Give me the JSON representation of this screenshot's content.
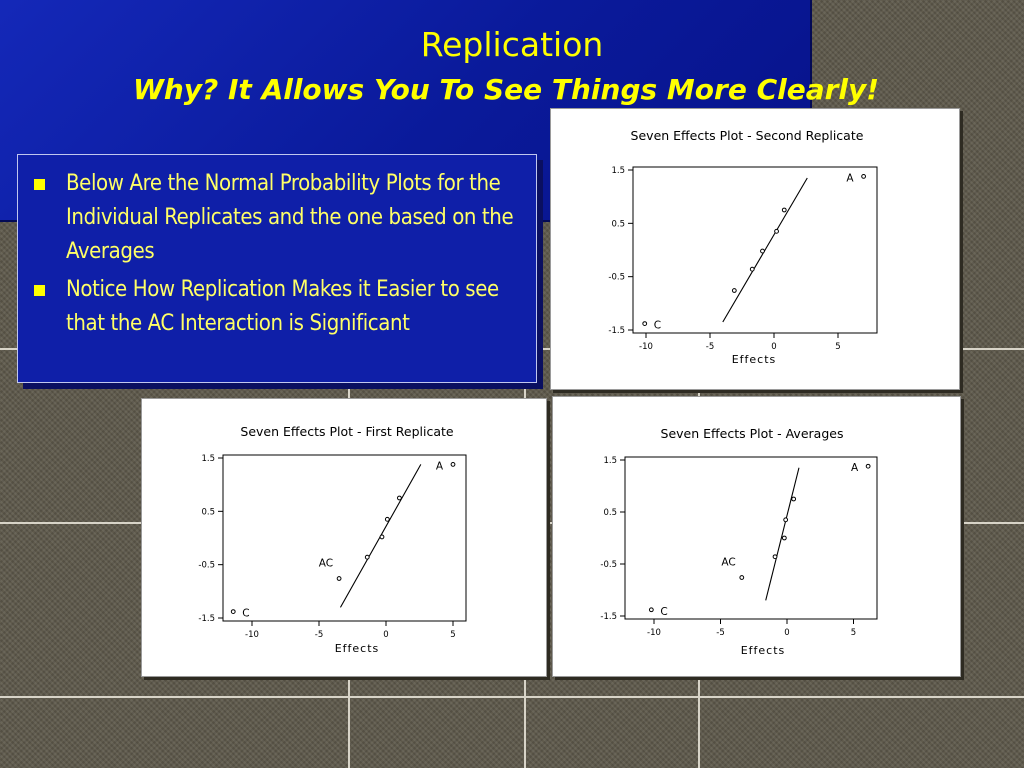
{
  "slide": {
    "title": "Replication",
    "subtitle": "Why?  It Allows You To See Things More Clearly!",
    "bullets": [
      "Below Are the Normal Probability Plots for the Individual Replicates and the one based on the Averages",
      "Notice How Replication Makes it Easier to see that the AC Interaction is Significant"
    ],
    "colors": {
      "title": "#ffff00",
      "panel": "#0f1fa8",
      "bullet_text": "#ffff66"
    }
  },
  "chart_data": [
    {
      "type": "scatter",
      "title": "Seven Effects Plot - Second Replicate",
      "xlabel": "Effects",
      "ylabel": "",
      "xlim": [
        -11,
        8
      ],
      "ylim": [
        -1.5,
        1.5
      ],
      "x_ticks": [
        -10,
        -5,
        0,
        5
      ],
      "y_ticks": [
        1.5,
        0.5,
        -0.5,
        -1.5
      ],
      "points": [
        {
          "x": -10.1,
          "y": -1.38,
          "label": "C"
        },
        {
          "x": -3.1,
          "y": -0.76,
          "label": ""
        },
        {
          "x": -1.7,
          "y": -0.36,
          "label": ""
        },
        {
          "x": -0.9,
          "y": -0.02,
          "label": ""
        },
        {
          "x": 0.2,
          "y": 0.35,
          "label": ""
        },
        {
          "x": 0.8,
          "y": 0.75,
          "label": ""
        },
        {
          "x": 7.0,
          "y": 1.38,
          "label": "A"
        }
      ],
      "fit_line": [
        [
          -4.0,
          -1.35
        ],
        [
          2.6,
          1.35
        ]
      ]
    },
    {
      "type": "scatter",
      "title": "Seven Effects Plot - First Replicate",
      "xlabel": "Effects",
      "ylabel": "",
      "xlim": [
        -12,
        6
      ],
      "ylim": [
        -1.5,
        1.5
      ],
      "x_ticks": [
        -10,
        -5,
        0,
        5
      ],
      "y_ticks": [
        1.5,
        0.5,
        -0.5,
        -1.5
      ],
      "points": [
        {
          "x": -11.4,
          "y": -1.38,
          "label": "C"
        },
        {
          "x": -3.5,
          "y": -0.76,
          "label": "AC"
        },
        {
          "x": -1.4,
          "y": -0.36,
          "label": ""
        },
        {
          "x": -0.3,
          "y": 0.02,
          "label": ""
        },
        {
          "x": 0.1,
          "y": 0.35,
          "label": ""
        },
        {
          "x": 1.0,
          "y": 0.75,
          "label": ""
        },
        {
          "x": 5.0,
          "y": 1.38,
          "label": "A"
        }
      ],
      "fit_line": [
        [
          -3.4,
          -1.3
        ],
        [
          2.6,
          1.38
        ]
      ]
    },
    {
      "type": "scatter",
      "title": "Seven Effects Plot - Averages",
      "xlabel": "Effects",
      "ylabel": "",
      "xlim": [
        -11,
        7
      ],
      "ylim": [
        -1.5,
        1.5
      ],
      "x_ticks": [
        -10,
        -5,
        0,
        5
      ],
      "y_ticks": [
        1.5,
        0.5,
        -0.5,
        -1.5
      ],
      "points": [
        {
          "x": -10.2,
          "y": -1.38,
          "label": "C"
        },
        {
          "x": -3.4,
          "y": -0.76,
          "label": "AC"
        },
        {
          "x": -0.9,
          "y": -0.36,
          "label": ""
        },
        {
          "x": -0.2,
          "y": 0.0,
          "label": ""
        },
        {
          "x": -0.1,
          "y": 0.35,
          "label": ""
        },
        {
          "x": 0.5,
          "y": 0.75,
          "label": ""
        },
        {
          "x": 6.1,
          "y": 1.38,
          "label": "A"
        }
      ],
      "fit_line": [
        [
          -1.6,
          -1.2
        ],
        [
          0.9,
          1.35
        ]
      ]
    }
  ]
}
